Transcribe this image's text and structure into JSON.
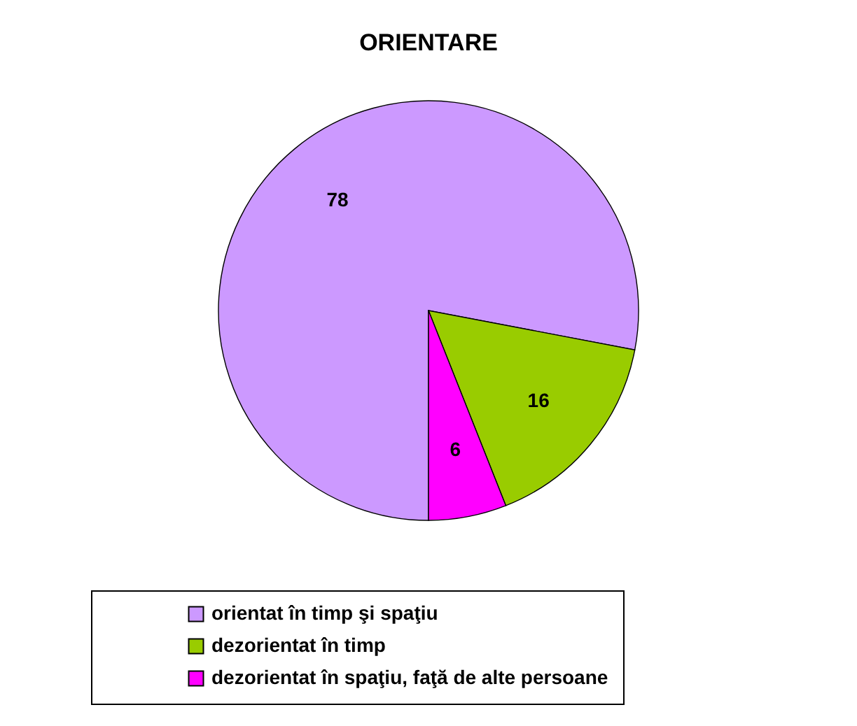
{
  "chart_data": {
    "type": "pie",
    "title": "ORIENTARE",
    "categories": [
      "orientat în timp şi spaţiu",
      "dezorientat în timp",
      "dezorientat în spaţiu, faţă de alte persoane"
    ],
    "values": [
      78,
      16,
      6
    ],
    "colors": [
      "#cc99ff",
      "#99cc00",
      "#ff00ff"
    ],
    "data_labels": true,
    "legend": "bottom"
  }
}
